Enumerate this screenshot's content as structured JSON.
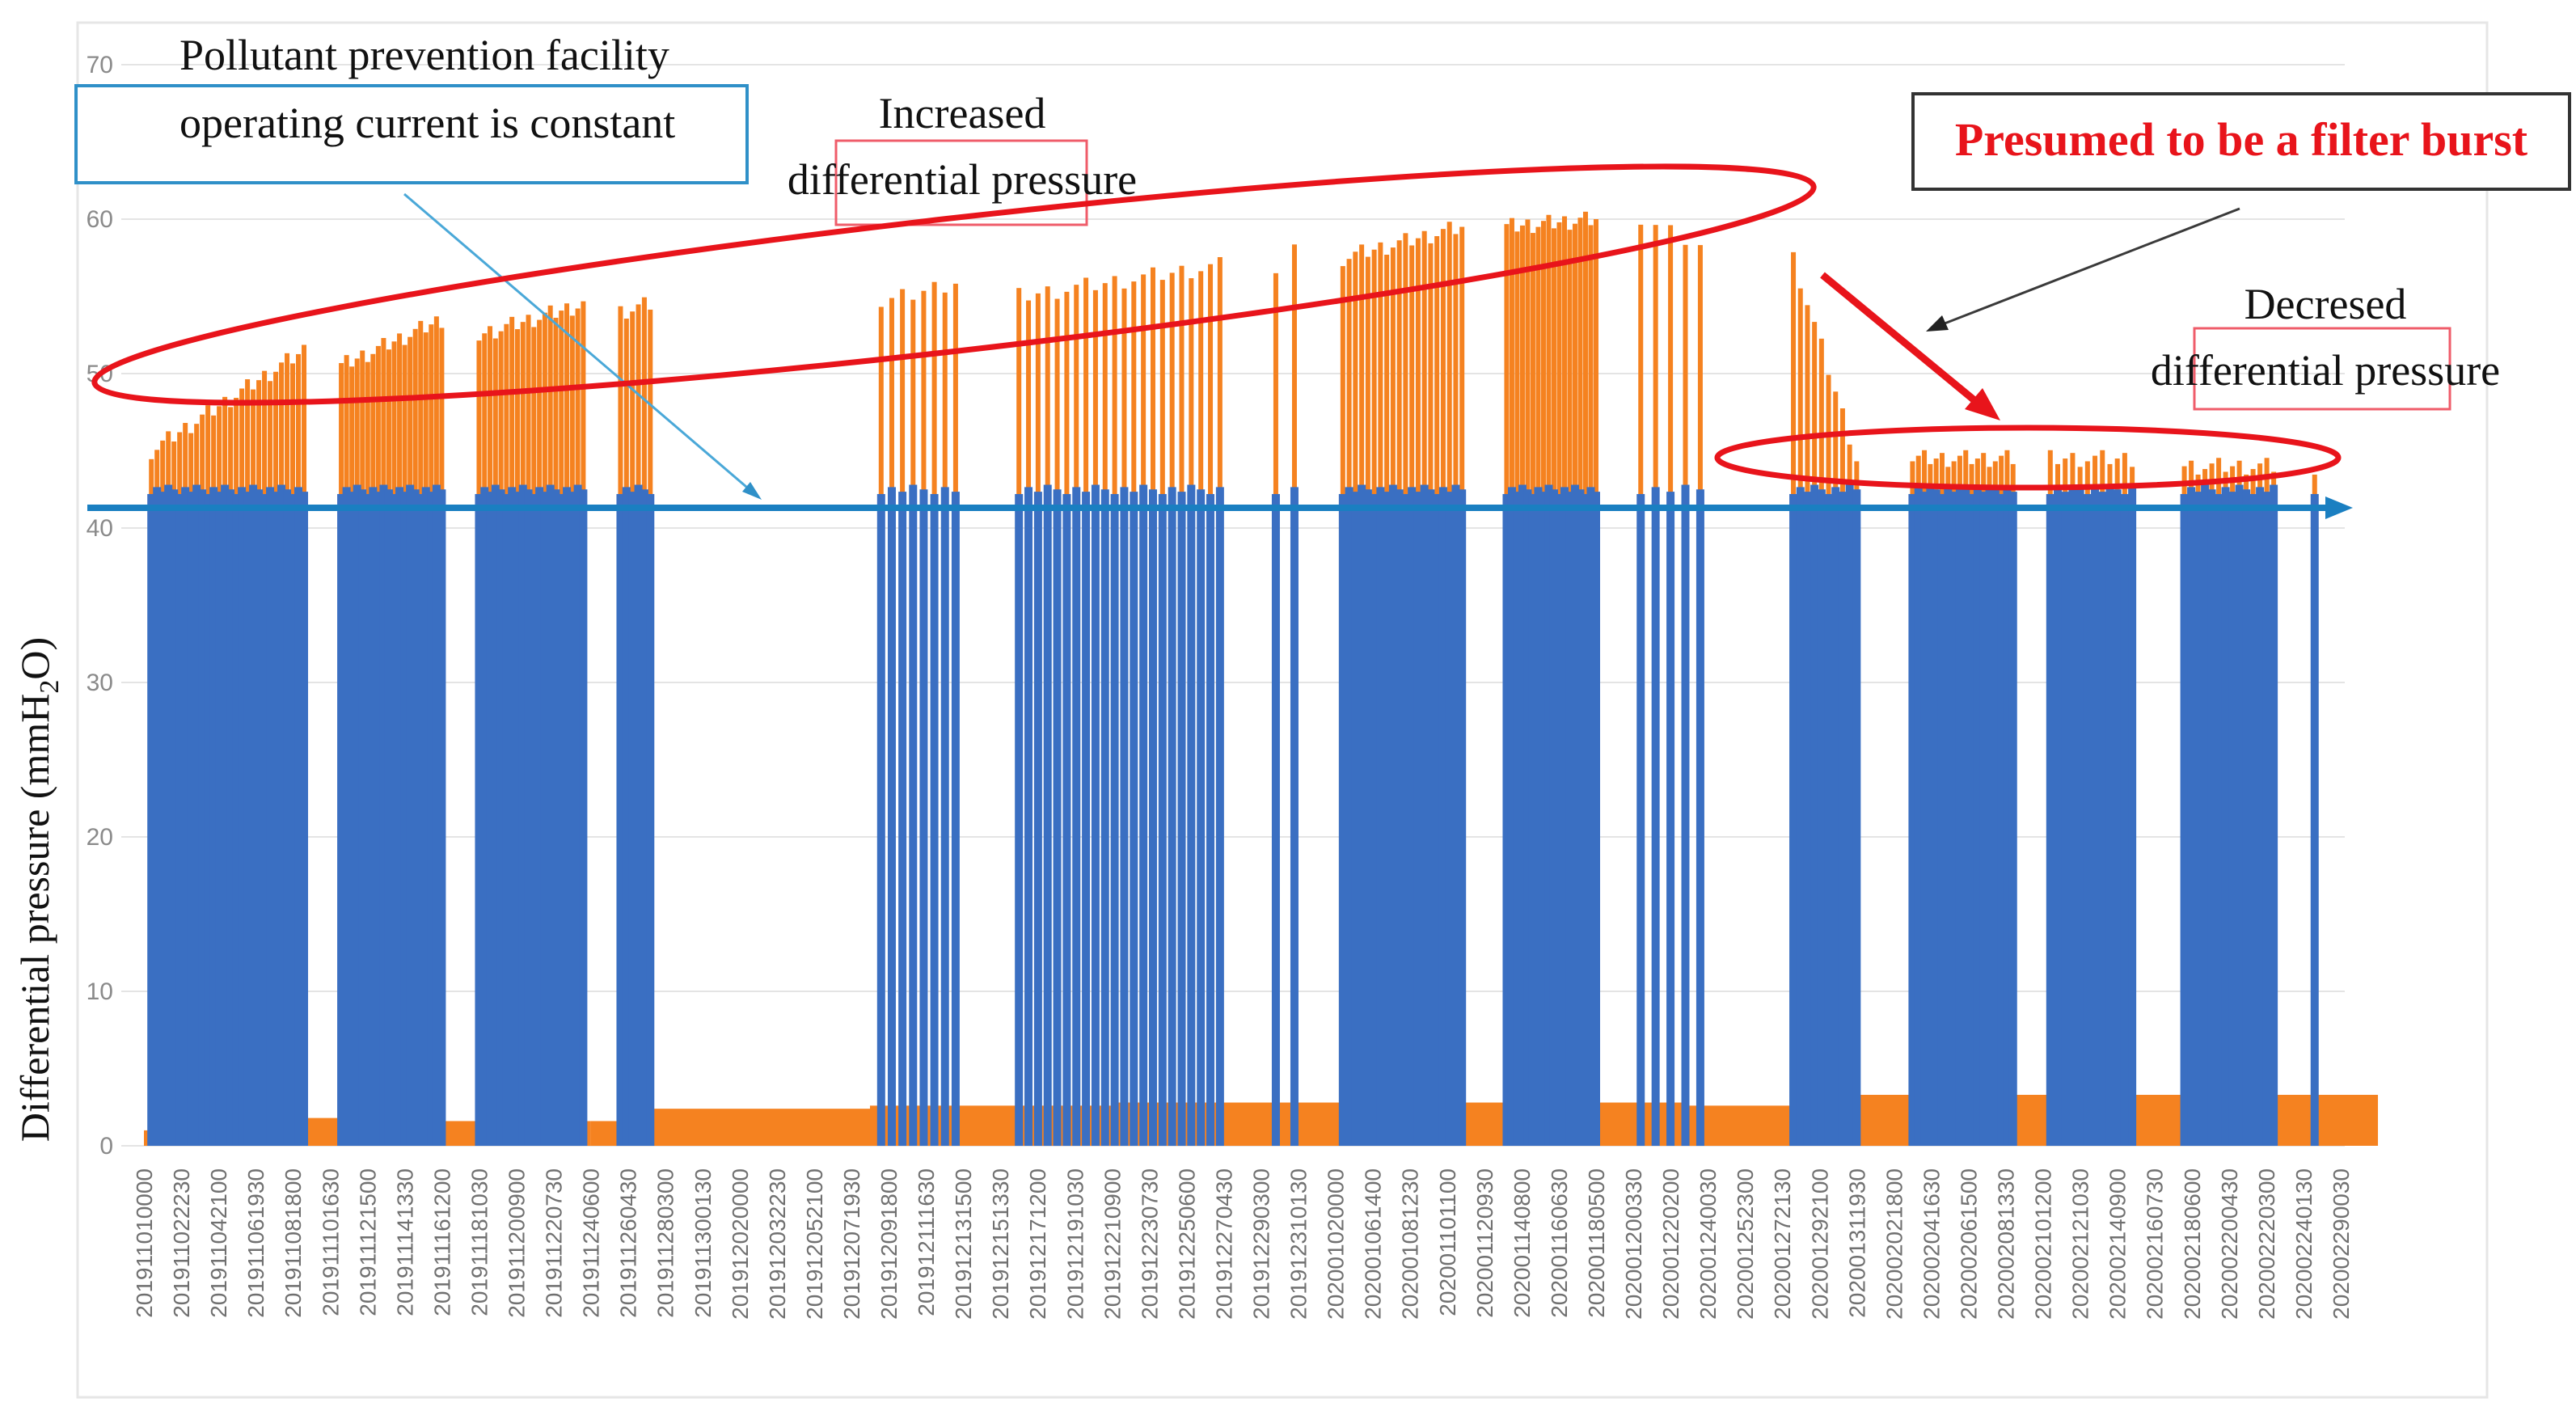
{
  "chart_data": {
    "type": "bar",
    "title": "",
    "xlabel": "",
    "ylabel": "Differential pressure (mmH2O)",
    "ylabel_parts": {
      "pre": "Differential pressure (mmH",
      "sub": "2",
      "post": "O)"
    },
    "ylim": [
      0,
      70
    ],
    "yticks": [
      0,
      10,
      20,
      30,
      40,
      50,
      60,
      70
    ],
    "grid": true,
    "x_tick_labels": [
      "201911010000",
      "201911022230",
      "201911042100",
      "201911061930",
      "201911081800",
      "201911101630",
      "201911121500",
      "201911141330",
      "201911161200",
      "201911181030",
      "201911200900",
      "201911220730",
      "201911240600",
      "201911260430",
      "201911280300",
      "201911300130",
      "201912020000",
      "201912032230",
      "201912052100",
      "201912071930",
      "201912091800",
      "201912111630",
      "201912131500",
      "201912151330",
      "201912171200",
      "201912191030",
      "201912210900",
      "201912230730",
      "201912250600",
      "201912270430",
      "201912290300",
      "201912310130",
      "202001020000",
      "202001061400",
      "202001081230",
      "202001101100",
      "202001120930",
      "202001140800",
      "202001160630",
      "202001180500",
      "202001200330",
      "202001220200",
      "202001240030",
      "202001252300",
      "202001272130",
      "202001292100",
      "202001311930",
      "202002021800",
      "202002041630",
      "202002061500",
      "202002081330",
      "202002101200",
      "202002121030",
      "202002140900",
      "202002160730",
      "202002180600",
      "202002200430",
      "202002220300",
      "202002240130",
      "202002290030"
    ],
    "series": [
      {
        "name": "Differential pressure",
        "color": "#f58220",
        "baseline_segments": [
          {
            "from": 0.0,
            "to": 4.3,
            "value": 1.0
          },
          {
            "from": 4.3,
            "to": 8.0,
            "value": 1.8
          },
          {
            "from": 8.0,
            "to": 12.0,
            "value": 1.6
          },
          {
            "from": 12.0,
            "to": 13.6,
            "value": 1.6
          },
          {
            "from": 13.6,
            "to": 19.5,
            "value": 2.4
          },
          {
            "from": 19.5,
            "to": 26.0,
            "value": 2.6
          },
          {
            "from": 26.0,
            "to": 35.0,
            "value": 2.8
          },
          {
            "from": 35.0,
            "to": 41.5,
            "value": 2.8
          },
          {
            "from": 41.5,
            "to": 45.0,
            "value": 2.6
          },
          {
            "from": 45.0,
            "to": 60.0,
            "value": 3.3
          }
        ],
        "bursts": [
          {
            "from": 0.2,
            "to": 4.3,
            "v0": 45,
            "v1": 51.5,
            "n": 28
          },
          {
            "from": 5.3,
            "to": 8.0,
            "v0": 50.5,
            "v1": 53.5,
            "n": 20
          },
          {
            "from": 9.0,
            "to": 11.8,
            "v0": 52.5,
            "v1": 54.5,
            "n": 20
          },
          {
            "from": 12.8,
            "to": 13.6,
            "v0": 54,
            "v1": 54.5,
            "n": 6
          },
          {
            "from": 19.8,
            "to": 21.8,
            "v0": 54.5,
            "v1": 56.0,
            "n": 8
          },
          {
            "from": 23.5,
            "to": 28.9,
            "v0": 55,
            "v1": 57.0,
            "n": 22
          },
          {
            "from": 30.4,
            "to": 30.9,
            "v0": 56.5,
            "v1": 58.0,
            "n": 2
          },
          {
            "from": 32.2,
            "to": 35.4,
            "v0": 57.5,
            "v1": 59.5,
            "n": 20
          },
          {
            "from": 36.6,
            "to": 39.0,
            "v0": 59.5,
            "v1": 60.0,
            "n": 18
          },
          {
            "from": 40.2,
            "to": 41.8,
            "v0": 60.0,
            "v1": 58.5,
            "n": 5
          },
          {
            "from": 44.3,
            "to": 46.0,
            "v0": 57.5,
            "v1": 44.5,
            "n": 10
          },
          {
            "from": 47.5,
            "to": 50.2,
            "v0": 44.5,
            "v1": 44.5,
            "n": 18
          },
          {
            "from": 51.2,
            "to": 53.4,
            "v0": 44.5,
            "v1": 44.5,
            "n": 12
          },
          {
            "from": 54.8,
            "to": 57.2,
            "v0": 44.0,
            "v1": 44.0,
            "n": 14
          },
          {
            "from": 58.3,
            "to": 58.5,
            "v0": 44.0,
            "v1": 44.0,
            "n": 1
          }
        ]
      },
      {
        "name": "Operating current",
        "color": "#3a6fc2",
        "level": 42.5
      }
    ],
    "reference_line": {
      "value": 41.5,
      "color": "#1a7fc1"
    },
    "annotations": {
      "current_constant": [
        "Pollutant prevention facility",
        "operating current is constant"
      ],
      "increased": [
        "Increased",
        "differential pressure"
      ],
      "filter_burst": "Presumed to be a filter burst",
      "decreased": [
        "Decresed",
        "differential pressure"
      ]
    }
  }
}
